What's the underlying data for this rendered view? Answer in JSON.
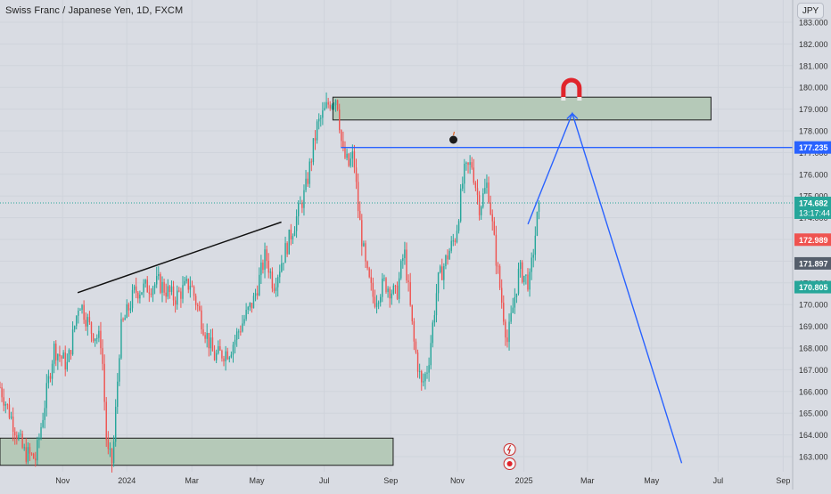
{
  "title": "Swiss Franc / Japanese Yen, 1D, FXCM",
  "currency": "JPY",
  "chart_data": {
    "type": "candlestick",
    "symbol": "CHFJPY",
    "interval": "1D",
    "y_axis": {
      "ticks": [
        "163.000",
        "164.000",
        "165.000",
        "166.000",
        "167.000",
        "168.000",
        "169.000",
        "170.000",
        "171.000",
        "172.000",
        "173.000",
        "174.000",
        "175.000",
        "176.000",
        "177.000",
        "178.000",
        "179.000",
        "180.000",
        "181.000",
        "182.000",
        "183.000"
      ],
      "range": [
        162.4,
        184.6
      ]
    },
    "x_axis": {
      "tick_labels": [
        "Nov",
        "2024",
        "Mar",
        "May",
        "Jul",
        "Sep",
        "Nov",
        "2025",
        "Mar",
        "May",
        "Jul",
        "Sep"
      ]
    },
    "price_tags": {
      "level": {
        "value": "177.235",
        "color": "#2962ff"
      },
      "current": {
        "value": "174.682",
        "countdown": "13:17:44",
        "color": "#26a69a"
      },
      "high_tag": {
        "value": "172.989",
        "color": "#ef5350"
      },
      "mid_tag": {
        "value": "171.897",
        "color": "#555e6b"
      },
      "low_tag": {
        "value": "170.805",
        "color": "#26a69a"
      }
    },
    "current_price": 174.682,
    "horizontal_level": 177.235,
    "zones": [
      {
        "name": "supply-zone",
        "y_from": 178.5,
        "y_to": 179.55
      },
      {
        "name": "demand-zone",
        "y_from": 162.6,
        "y_to": 163.85
      }
    ],
    "trendline": {
      "from": {
        "bar": 0.098,
        "y": 170.55
      },
      "to": {
        "bar": 0.355,
        "y": 173.8
      }
    },
    "projection": [
      {
        "bar": 0.666,
        "y": 173.7
      },
      {
        "bar": 0.722,
        "y": 178.8
      },
      {
        "bar": 0.86,
        "y": 162.7
      }
    ],
    "candle_colors": {
      "up": "#26a69a",
      "down": "#ef5350"
    },
    "waypoints": [
      [
        0.0,
        166.2
      ],
      [
        0.03,
        163.2
      ],
      [
        0.045,
        162.9
      ],
      [
        0.068,
        168.0
      ],
      [
        0.085,
        167.2
      ],
      [
        0.1,
        170.2
      ],
      [
        0.115,
        168.8
      ],
      [
        0.128,
        168.3
      ],
      [
        0.135,
        163.2
      ],
      [
        0.142,
        162.7
      ],
      [
        0.152,
        168.8
      ],
      [
        0.17,
        170.6
      ],
      [
        0.2,
        171.0
      ],
      [
        0.22,
        170.3
      ],
      [
        0.24,
        171.0
      ],
      [
        0.255,
        169.2
      ],
      [
        0.27,
        167.6
      ],
      [
        0.29,
        167.9
      ],
      [
        0.305,
        169.1
      ],
      [
        0.32,
        170.2
      ],
      [
        0.335,
        172.3
      ],
      [
        0.345,
        170.9
      ],
      [
        0.36,
        172.5
      ],
      [
        0.375,
        174.1
      ],
      [
        0.385,
        175.2
      ],
      [
        0.4,
        178.2
      ],
      [
        0.415,
        179.3
      ],
      [
        0.425,
        179.6
      ],
      [
        0.432,
        177.0
      ],
      [
        0.44,
        176.4
      ],
      [
        0.446,
        176.9
      ],
      [
        0.452,
        174.3
      ],
      [
        0.462,
        171.5
      ],
      [
        0.472,
        170.2
      ],
      [
        0.485,
        171.0
      ],
      [
        0.5,
        170.4
      ],
      [
        0.51,
        172.5
      ],
      [
        0.522,
        168.3
      ],
      [
        0.532,
        166.2
      ],
      [
        0.54,
        167.2
      ],
      [
        0.552,
        171.0
      ],
      [
        0.565,
        172.3
      ],
      [
        0.575,
        173.2
      ],
      [
        0.585,
        176.0
      ],
      [
        0.595,
        176.5
      ],
      [
        0.605,
        174.5
      ],
      [
        0.615,
        175.6
      ],
      [
        0.625,
        172.4
      ],
      [
        0.632,
        170.4
      ],
      [
        0.64,
        168.3
      ],
      [
        0.655,
        171.6
      ],
      [
        0.668,
        171.0
      ],
      [
        0.68,
        174.68
      ]
    ]
  }
}
